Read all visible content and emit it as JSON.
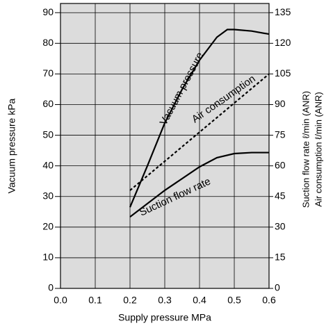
{
  "chart_data": {
    "type": "line",
    "x_label": "Supply pressure MPa",
    "y_label": "Vacuum pressure kPa",
    "y2_labels": [
      "Suction flow rate ℓ/min (ANR)",
      "Air consumption ℓ/min (ANR)"
    ],
    "xlim": [
      0,
      0.6
    ],
    "xticks": [
      {
        "value": 0,
        "label": "0.0"
      },
      0.1,
      0.2,
      0.3,
      0.4,
      0.5,
      0.6
    ],
    "ylim": [
      0,
      93
    ],
    "yticks": [
      0,
      10,
      20,
      30,
      40,
      50,
      60,
      70,
      80,
      90
    ],
    "y2lim": [
      0,
      139.5
    ],
    "y2ticks": [
      0,
      15,
      30,
      45,
      60,
      75,
      90,
      105,
      120,
      135
    ],
    "grid": true,
    "series": [
      {
        "name": "Vacuum pressure",
        "color": "#000000",
        "x": [
          0.2,
          0.25,
          0.3,
          0.35,
          0.4,
          0.45,
          0.48,
          0.5,
          0.55,
          0.6
        ],
        "values": [
          26.5,
          40,
          54,
          65,
          74.5,
          82,
          84.5,
          84.5,
          84,
          83
        ]
      },
      {
        "name": "Air consumption",
        "color": "#000000",
        "axis": "y2",
        "dashed": true,
        "x": [
          0.2,
          0.6
        ],
        "values": [
          48,
          105
        ]
      },
      {
        "name": "Suction flow rate",
        "color": "#000000",
        "axis": "y2",
        "x": [
          0.2,
          0.3,
          0.4,
          0.45,
          0.5,
          0.55,
          0.6
        ],
        "values": [
          35,
          48,
          59.5,
          64,
          66,
          66.5,
          66.5
        ]
      }
    ]
  }
}
